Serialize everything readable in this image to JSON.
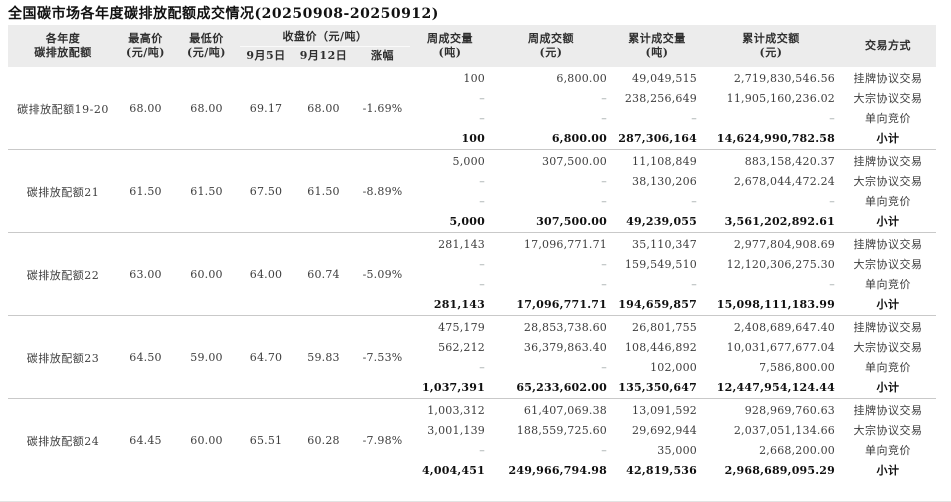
{
  "title": "全国碳市场各年度碳排放配额成交情况(20250908-20250912)",
  "header": {
    "quota": [
      "各年度",
      "碳排放配额"
    ],
    "high": [
      "最高价",
      "(元/吨)"
    ],
    "low": [
      "最低价",
      "(元/吨)"
    ],
    "close_group": "收盘价（元/吨）",
    "close_sub": [
      "9月5日",
      "9月12日",
      "涨幅"
    ],
    "week_volume": [
      "周成交量",
      "(吨)"
    ],
    "week_turnover": [
      "周成交额",
      "(元)"
    ],
    "cum_volume": [
      "累计成交量",
      "(吨)"
    ],
    "cum_turnover": [
      "累计成交额",
      "(元)"
    ],
    "method": "交易方式"
  },
  "groups": [
    {
      "name": "碳排放配额19-20",
      "high": "68.00",
      "low": "68.00",
      "close_0905": "69.17",
      "close_0912": "68.00",
      "change": "-1.69%",
      "rows": [
        {
          "week_volume": "100",
          "week_turnover": "6,800.00",
          "cum_volume": "49,049,515",
          "cum_turnover": "2,719,830,546.56",
          "method": "挂牌协议交易",
          "subtotal": false
        },
        {
          "week_volume": "–",
          "week_turnover": "–",
          "cum_volume": "238,256,649",
          "cum_turnover": "11,905,160,236.02",
          "method": "大宗协议交易",
          "subtotal": false
        },
        {
          "week_volume": "–",
          "week_turnover": "–",
          "cum_volume": "–",
          "cum_turnover": "–",
          "method": "单向竞价",
          "subtotal": false
        },
        {
          "week_volume": "100",
          "week_turnover": "6,800.00",
          "cum_volume": "287,306,164",
          "cum_turnover": "14,624,990,782.58",
          "method": "小计",
          "subtotal": true
        }
      ]
    },
    {
      "name": "碳排放配额21",
      "high": "61.50",
      "low": "61.50",
      "close_0905": "67.50",
      "close_0912": "61.50",
      "change": "-8.89%",
      "rows": [
        {
          "week_volume": "5,000",
          "week_turnover": "307,500.00",
          "cum_volume": "11,108,849",
          "cum_turnover": "883,158,420.37",
          "method": "挂牌协议交易",
          "subtotal": false
        },
        {
          "week_volume": "–",
          "week_turnover": "–",
          "cum_volume": "38,130,206",
          "cum_turnover": "2,678,044,472.24",
          "method": "大宗协议交易",
          "subtotal": false
        },
        {
          "week_volume": "–",
          "week_turnover": "–",
          "cum_volume": "–",
          "cum_turnover": "–",
          "method": "单向竞价",
          "subtotal": false
        },
        {
          "week_volume": "5,000",
          "week_turnover": "307,500.00",
          "cum_volume": "49,239,055",
          "cum_turnover": "3,561,202,892.61",
          "method": "小计",
          "subtotal": true
        }
      ]
    },
    {
      "name": "碳排放配额22",
      "high": "63.00",
      "low": "60.00",
      "close_0905": "64.00",
      "close_0912": "60.74",
      "change": "-5.09%",
      "rows": [
        {
          "week_volume": "281,143",
          "week_turnover": "17,096,771.71",
          "cum_volume": "35,110,347",
          "cum_turnover": "2,977,804,908.69",
          "method": "挂牌协议交易",
          "subtotal": false
        },
        {
          "week_volume": "–",
          "week_turnover": "–",
          "cum_volume": "159,549,510",
          "cum_turnover": "12,120,306,275.30",
          "method": "大宗协议交易",
          "subtotal": false
        },
        {
          "week_volume": "–",
          "week_turnover": "–",
          "cum_volume": "–",
          "cum_turnover": "–",
          "method": "单向竞价",
          "subtotal": false
        },
        {
          "week_volume": "281,143",
          "week_turnover": "17,096,771.71",
          "cum_volume": "194,659,857",
          "cum_turnover": "15,098,111,183.99",
          "method": "小计",
          "subtotal": true
        }
      ]
    },
    {
      "name": "碳排放配额23",
      "high": "64.50",
      "low": "59.00",
      "close_0905": "64.70",
      "close_0912": "59.83",
      "change": "-7.53%",
      "rows": [
        {
          "week_volume": "475,179",
          "week_turnover": "28,853,738.60",
          "cum_volume": "26,801,755",
          "cum_turnover": "2,408,689,647.40",
          "method": "挂牌协议交易",
          "subtotal": false
        },
        {
          "week_volume": "562,212",
          "week_turnover": "36,379,863.40",
          "cum_volume": "108,446,892",
          "cum_turnover": "10,031,677,677.04",
          "method": "大宗协议交易",
          "subtotal": false
        },
        {
          "week_volume": "–",
          "week_turnover": "–",
          "cum_volume": "102,000",
          "cum_turnover": "7,586,800.00",
          "method": "单向竞价",
          "subtotal": false
        },
        {
          "week_volume": "1,037,391",
          "week_turnover": "65,233,602.00",
          "cum_volume": "135,350,647",
          "cum_turnover": "12,447,954,124.44",
          "method": "小计",
          "subtotal": true
        }
      ]
    },
    {
      "name": "碳排放配额24",
      "high": "64.45",
      "low": "60.00",
      "close_0905": "65.51",
      "close_0912": "60.28",
      "change": "-7.98%",
      "rows": [
        {
          "week_volume": "1,003,312",
          "week_turnover": "61,407,069.38",
          "cum_volume": "13,091,592",
          "cum_turnover": "928,969,760.63",
          "method": "挂牌协议交易",
          "subtotal": false
        },
        {
          "week_volume": "3,001,139",
          "week_turnover": "188,559,725.60",
          "cum_volume": "29,692,944",
          "cum_turnover": "2,037,051,134.66",
          "method": "大宗协议交易",
          "subtotal": false
        },
        {
          "week_volume": "–",
          "week_turnover": "–",
          "cum_volume": "35,000",
          "cum_turnover": "2,668,200.00",
          "method": "单向竞价",
          "subtotal": false
        },
        {
          "week_volume": "4,004,451",
          "week_turnover": "249,966,794.98",
          "cum_volume": "42,819,536",
          "cum_turnover": "2,968,689,095.29",
          "method": "小计",
          "subtotal": true
        }
      ]
    }
  ]
}
